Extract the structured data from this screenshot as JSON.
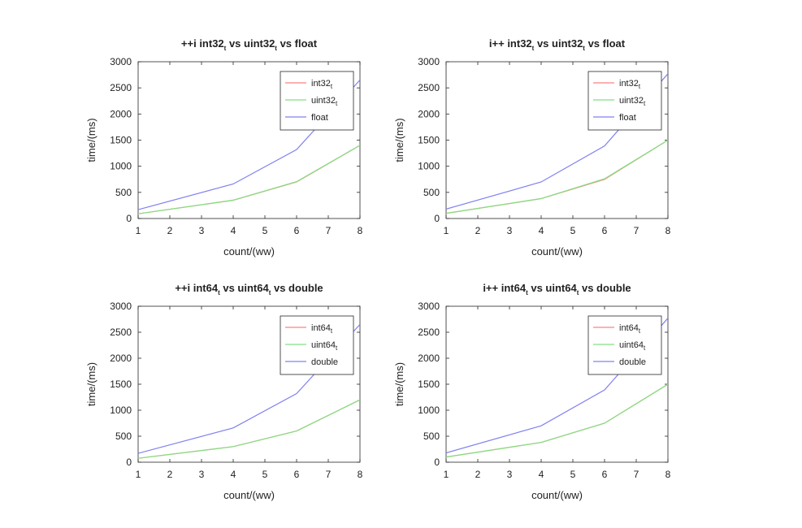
{
  "chart_data": [
    {
      "type": "line",
      "title": "++i int32_t vs uint32_t vs float",
      "title_parts": {
        "pre": "++i int32",
        "s1": "t",
        "mid": " vs uint32",
        "s2": "t",
        "post": " vs float"
      },
      "xlabel": "count/(ww)",
      "ylabel": "time/(ms)",
      "xlim": [
        1,
        8
      ],
      "ylim": [
        0,
        3000
      ],
      "x_ticks": [
        1,
        2,
        3,
        4,
        5,
        6,
        7,
        8
      ],
      "y_ticks": [
        0,
        500,
        1000,
        1500,
        2000,
        2500,
        3000
      ],
      "legend_position": "top-right",
      "x": [
        1,
        4,
        6,
        8
      ],
      "series": [
        {
          "name": "int32_t",
          "label": "int32",
          "sub": "t",
          "color": "#ff8080",
          "values": [
            90,
            350,
            700,
            1400
          ]
        },
        {
          "name": "uint32_t",
          "label": "uint32",
          "sub": "t",
          "color": "#80e080",
          "values": [
            90,
            352,
            705,
            1400
          ]
        },
        {
          "name": "float",
          "label": "float",
          "sub": "",
          "color": "#8080f0",
          "values": [
            170,
            660,
            1320,
            2650
          ]
        }
      ]
    },
    {
      "type": "line",
      "title": "i++ int32_t vs uint32_t vs float",
      "title_parts": {
        "pre": "i++ int32",
        "s1": "t",
        "mid": " vs uint32",
        "s2": "t",
        "post": " vs float"
      },
      "xlabel": "count/(ww)",
      "ylabel": "time/(ms)",
      "xlim": [
        1,
        8
      ],
      "ylim": [
        0,
        3000
      ],
      "x_ticks": [
        1,
        2,
        3,
        4,
        5,
        6,
        7,
        8
      ],
      "y_ticks": [
        0,
        500,
        1000,
        1500,
        2000,
        2500,
        3000
      ],
      "legend_position": "top-right",
      "x": [
        1,
        4,
        6,
        8
      ],
      "series": [
        {
          "name": "int32_t",
          "label": "int32",
          "sub": "t",
          "color": "#ff8080",
          "values": [
            100,
            380,
            750,
            1500
          ]
        },
        {
          "name": "uint32_t",
          "label": "uint32",
          "sub": "t",
          "color": "#80e080",
          "values": [
            100,
            382,
            760,
            1500
          ]
        },
        {
          "name": "float",
          "label": "float",
          "sub": "",
          "color": "#8080f0",
          "values": [
            180,
            700,
            1390,
            2770
          ]
        }
      ]
    },
    {
      "type": "line",
      "title": "++i int64_t vs uint64_t vs double",
      "title_parts": {
        "pre": "++i int64",
        "s1": "t",
        "mid": " vs uint64",
        "s2": "t",
        "post": " vs double"
      },
      "xlabel": "count/(ww)",
      "ylabel": "time/(ms)",
      "xlim": [
        1,
        8
      ],
      "ylim": [
        0,
        3000
      ],
      "x_ticks": [
        1,
        2,
        3,
        4,
        5,
        6,
        7,
        8
      ],
      "y_ticks": [
        0,
        500,
        1000,
        1500,
        2000,
        2500,
        3000
      ],
      "legend_position": "top-right",
      "x": [
        1,
        4,
        6,
        8
      ],
      "series": [
        {
          "name": "int64_t",
          "label": "int64",
          "sub": "t",
          "color": "#ff8080",
          "values": [
            75,
            300,
            600,
            1200
          ]
        },
        {
          "name": "uint64_t",
          "label": "uint64",
          "sub": "t",
          "color": "#80e080",
          "values": [
            75,
            300,
            600,
            1200
          ]
        },
        {
          "name": "double",
          "label": "double",
          "sub": "",
          "color": "#8080f0",
          "values": [
            170,
            660,
            1320,
            2650
          ]
        }
      ]
    },
    {
      "type": "line",
      "title": "i++ int64_t vs uint64_t vs double",
      "title_parts": {
        "pre": "i++ int64",
        "s1": "t",
        "mid": " vs uint64",
        "s2": "t",
        "post": " vs double"
      },
      "xlabel": "count/(ww)",
      "ylabel": "time/(ms)",
      "xlim": [
        1,
        8
      ],
      "ylim": [
        0,
        3000
      ],
      "x_ticks": [
        1,
        2,
        3,
        4,
        5,
        6,
        7,
        8
      ],
      "y_ticks": [
        0,
        500,
        1000,
        1500,
        2000,
        2500,
        3000
      ],
      "legend_position": "top-right",
      "x": [
        1,
        4,
        6,
        8
      ],
      "series": [
        {
          "name": "int64_t",
          "label": "int64",
          "sub": "t",
          "color": "#ff8080",
          "values": [
            100,
            380,
            750,
            1500
          ]
        },
        {
          "name": "uint64_t",
          "label": "uint64",
          "sub": "t",
          "color": "#80e080",
          "values": [
            100,
            382,
            750,
            1500
          ]
        },
        {
          "name": "double",
          "label": "double",
          "sub": "",
          "color": "#8080f0",
          "values": [
            180,
            700,
            1390,
            2770
          ]
        }
      ]
    }
  ]
}
